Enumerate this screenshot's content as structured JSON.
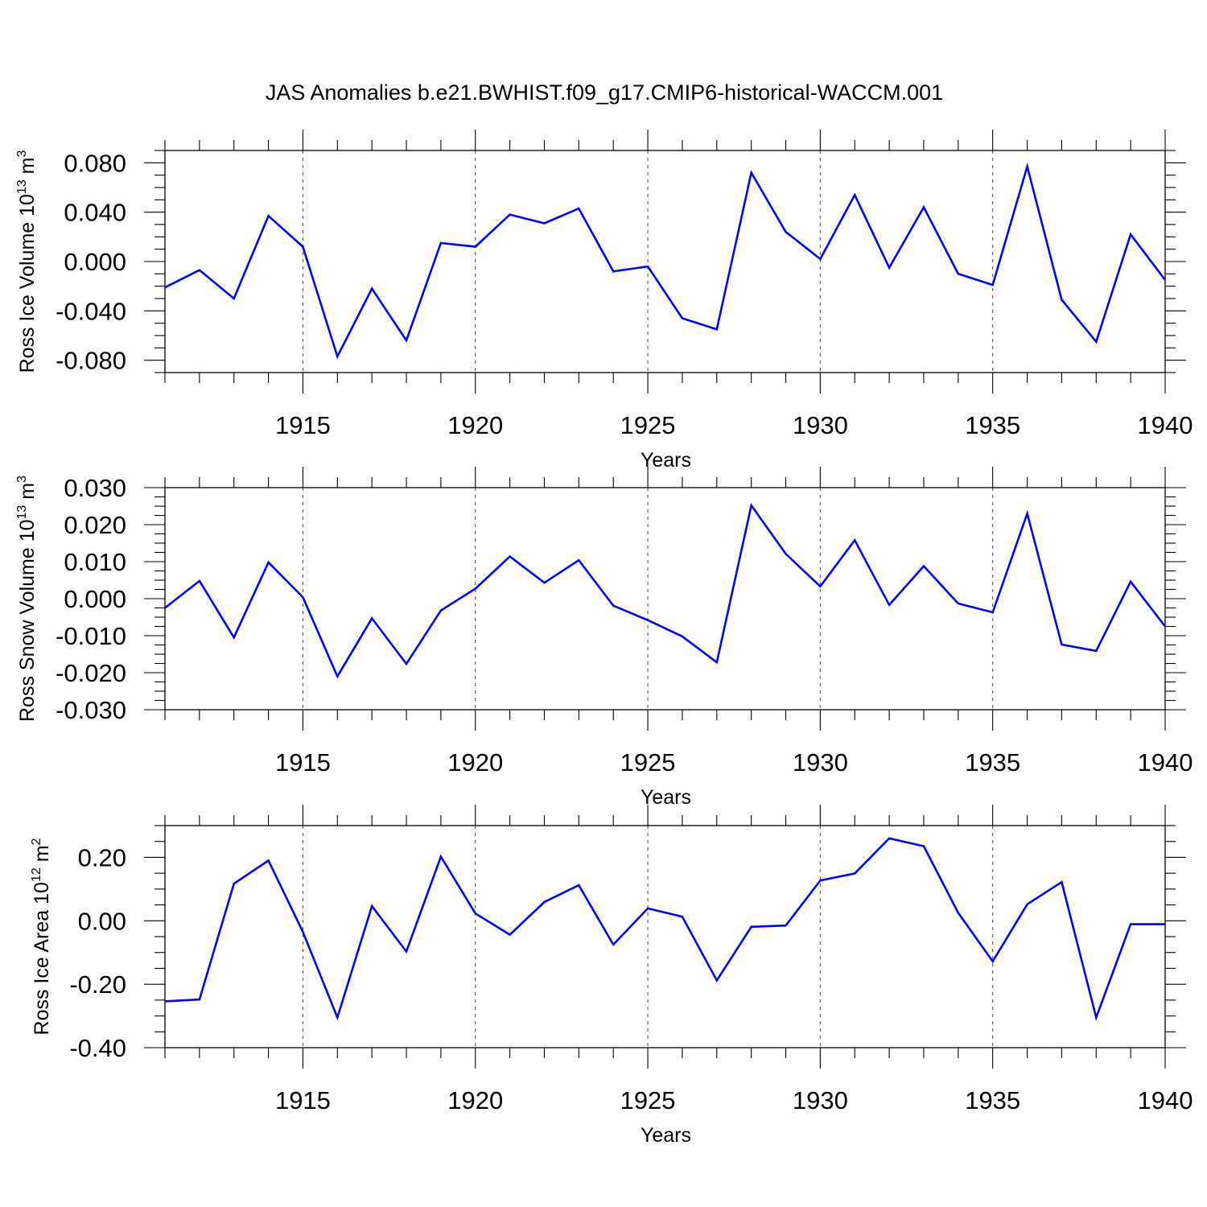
{
  "title": "JAS Anomalies b.e21.BWHIST.f09_g17.CMIP6-historical-WACCM.001",
  "line_color": "#0000ff",
  "chart_data": [
    {
      "type": "line",
      "title": "JAS Anomalies b.e21.BWHIST.f09_g17.CMIP6-historical-WACCM.001",
      "xlabel": "Years",
      "ylabel": "Ross Ice Volume 10",
      "ylabel_exp": "13",
      "ylabel_unit": " m",
      "ylabel_unit_exp": "3",
      "xlim": [
        1911,
        1940
      ],
      "ylim": [
        -0.09,
        0.09
      ],
      "yticks": [
        -0.08,
        -0.04,
        0.0,
        0.04,
        0.08
      ],
      "ytick_labels": [
        "-0.080",
        "-0.040",
        "0.000",
        "0.040",
        "0.080"
      ],
      "yminor_step": 0.01,
      "xticks": [
        1915,
        1920,
        1925,
        1930,
        1935,
        1940
      ],
      "xtick_labels": [
        "1915",
        "1920",
        "1925",
        "1930",
        "1935",
        "1940"
      ],
      "x": [
        1911,
        1912,
        1913,
        1914,
        1915,
        1916,
        1917,
        1918,
        1919,
        1920,
        1921,
        1922,
        1923,
        1924,
        1925,
        1926,
        1927,
        1928,
        1929,
        1930,
        1931,
        1932,
        1933,
        1934,
        1935,
        1936,
        1937,
        1938,
        1939,
        1940
      ],
      "series": [
        {
          "name": "Ross Ice Volume",
          "values": [
            -0.021,
            -0.007,
            -0.03,
            0.037,
            0.012,
            -0.077,
            -0.022,
            -0.064,
            0.015,
            0.012,
            0.038,
            0.031,
            0.043,
            -0.008,
            -0.004,
            -0.046,
            -0.055,
            0.072,
            0.024,
            0.002,
            0.054,
            -0.005,
            0.044,
            -0.01,
            -0.019,
            0.077,
            -0.031,
            -0.065,
            0.022,
            -0.015
          ]
        }
      ]
    },
    {
      "type": "line",
      "xlabel": "Years",
      "ylabel": "Ross Snow Volume 10",
      "ylabel_exp": "13",
      "ylabel_unit": " m",
      "ylabel_unit_exp": "3",
      "xlim": [
        1911,
        1940
      ],
      "ylim": [
        -0.03,
        0.03
      ],
      "yticks": [
        -0.03,
        -0.02,
        -0.01,
        0.0,
        0.01,
        0.02,
        0.03
      ],
      "ytick_labels": [
        "-0.030",
        "-0.020",
        "-0.010",
        "0.000",
        "0.010",
        "0.020",
        "0.030"
      ],
      "yminor_step": 0.0025,
      "xticks": [
        1915,
        1920,
        1925,
        1930,
        1935,
        1940
      ],
      "xtick_labels": [
        "1915",
        "1920",
        "1925",
        "1930",
        "1935",
        "1940"
      ],
      "x": [
        1911,
        1912,
        1913,
        1914,
        1915,
        1916,
        1917,
        1918,
        1919,
        1920,
        1921,
        1922,
        1923,
        1924,
        1925,
        1926,
        1927,
        1928,
        1929,
        1930,
        1931,
        1932,
        1933,
        1934,
        1935,
        1936,
        1937,
        1938,
        1939,
        1940
      ],
      "series": [
        {
          "name": "Ross Snow Volume",
          "values": [
            -0.0025,
            0.0048,
            -0.0105,
            0.0098,
            0.0004,
            -0.021,
            -0.0053,
            -0.0176,
            -0.0032,
            0.0027,
            0.0114,
            0.0043,
            0.0104,
            -0.0019,
            -0.0058,
            -0.0102,
            -0.0172,
            0.0252,
            0.0121,
            0.0033,
            0.0158,
            -0.0017,
            0.0088,
            -0.0013,
            -0.0037,
            0.023,
            -0.0124,
            -0.0141,
            0.0046,
            -0.0075
          ]
        }
      ]
    },
    {
      "type": "line",
      "xlabel": "Years",
      "ylabel": "Ross Ice Area 10",
      "ylabel_exp": "12",
      "ylabel_unit": " m",
      "ylabel_unit_exp": "2",
      "xlim": [
        1911,
        1940
      ],
      "ylim": [
        -0.4,
        0.3
      ],
      "yticks": [
        -0.4,
        -0.2,
        0.0,
        0.2
      ],
      "ytick_labels": [
        "-0.40",
        "-0.20",
        "0.00",
        "0.20"
      ],
      "yminor_step": 0.05,
      "xticks": [
        1915,
        1920,
        1925,
        1930,
        1935,
        1940
      ],
      "xtick_labels": [
        "1915",
        "1920",
        "1925",
        "1930",
        "1935",
        "1940"
      ],
      "x": [
        1911,
        1912,
        1913,
        1914,
        1915,
        1916,
        1917,
        1918,
        1919,
        1920,
        1921,
        1922,
        1923,
        1924,
        1925,
        1926,
        1927,
        1928,
        1929,
        1930,
        1931,
        1932,
        1933,
        1934,
        1935,
        1936,
        1937,
        1938,
        1939,
        1940
      ],
      "series": [
        {
          "name": "Ross Ice Area",
          "values": [
            -0.254,
            -0.248,
            0.117,
            0.19,
            -0.035,
            -0.305,
            0.046,
            -0.097,
            0.202,
            0.023,
            -0.044,
            0.059,
            0.112,
            -0.075,
            0.039,
            0.013,
            -0.188,
            -0.019,
            -0.015,
            0.127,
            0.149,
            0.26,
            0.235,
            0.025,
            -0.128,
            0.052,
            0.122,
            -0.305,
            -0.011,
            -0.011
          ]
        }
      ]
    }
  ]
}
